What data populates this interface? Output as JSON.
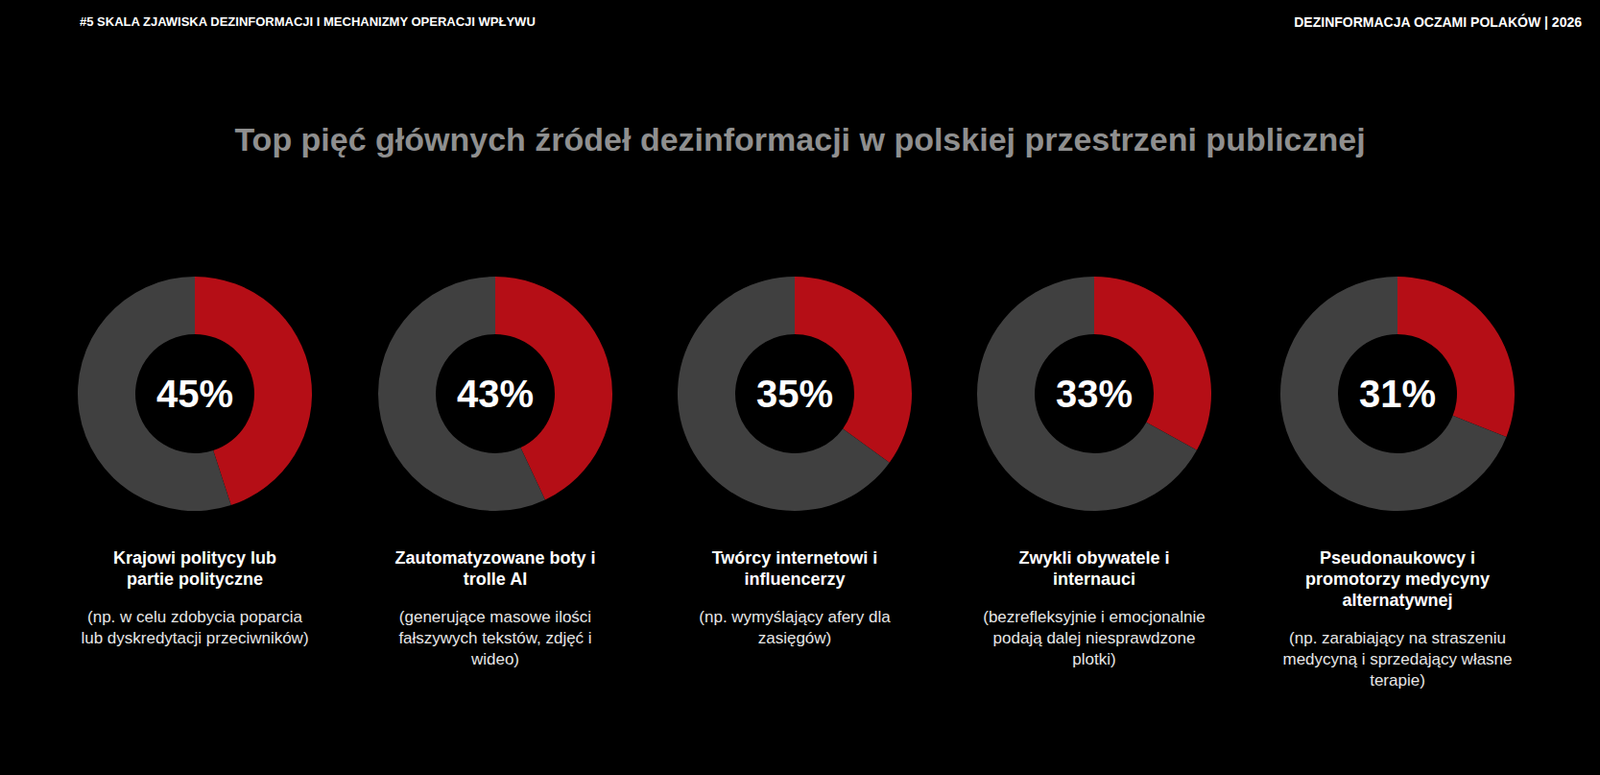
{
  "header": {
    "left": "#5 SKALA ZJAWISKA DEZINFORMACJI I MECHANIZMY OPERACJI WPŁYWU",
    "right": "DEZINFORMACJA OCZAMI POLAKÓW | 2026"
  },
  "title": "Top pięć głównych źródeł dezinformacji w polskiej przestrzeni publicznej",
  "chart_data": [
    {
      "type": "donut",
      "title": "Krajowi politycy lub partie polityczne",
      "subtitle": "(np. w celu zdobycia poparcia lub dyskredytacji przeciwników)",
      "values": [
        45,
        55
      ],
      "colors": [
        "#b50e16",
        "#404040"
      ],
      "annotation": "45%"
    },
    {
      "type": "donut",
      "title": "Zautomatyzowane boty i trolle AI",
      "subtitle": "(generujące masowe ilości fałszywych tekstów, zdjęć i wideo)",
      "values": [
        43,
        57
      ],
      "colors": [
        "#b50e16",
        "#404040"
      ],
      "annotation": "43%"
    },
    {
      "type": "donut",
      "title": "Twórcy internetowi i influencerzy",
      "subtitle": "(np. wymyślający afery dla zasięgów)",
      "values": [
        35,
        65
      ],
      "colors": [
        "#b50e16",
        "#404040"
      ],
      "annotation": "35%"
    },
    {
      "type": "donut",
      "title": "Zwykli obywatele i internauci",
      "subtitle": "(bezrefleksyjnie i emocjonalnie podają dalej niesprawdzone plotki)",
      "values": [
        33,
        67
      ],
      "colors": [
        "#b50e16",
        "#404040"
      ],
      "annotation": "33%"
    },
    {
      "type": "donut",
      "title": "Pseudonaukowcy i promotorzy medycyny alternatywnej",
      "subtitle": "(np. zarabiający na straszeniu medycyną i sprzedający własne terapie)",
      "values": [
        31,
        69
      ],
      "colors": [
        "#b50e16",
        "#404040"
      ],
      "annotation": "31%"
    }
  ]
}
